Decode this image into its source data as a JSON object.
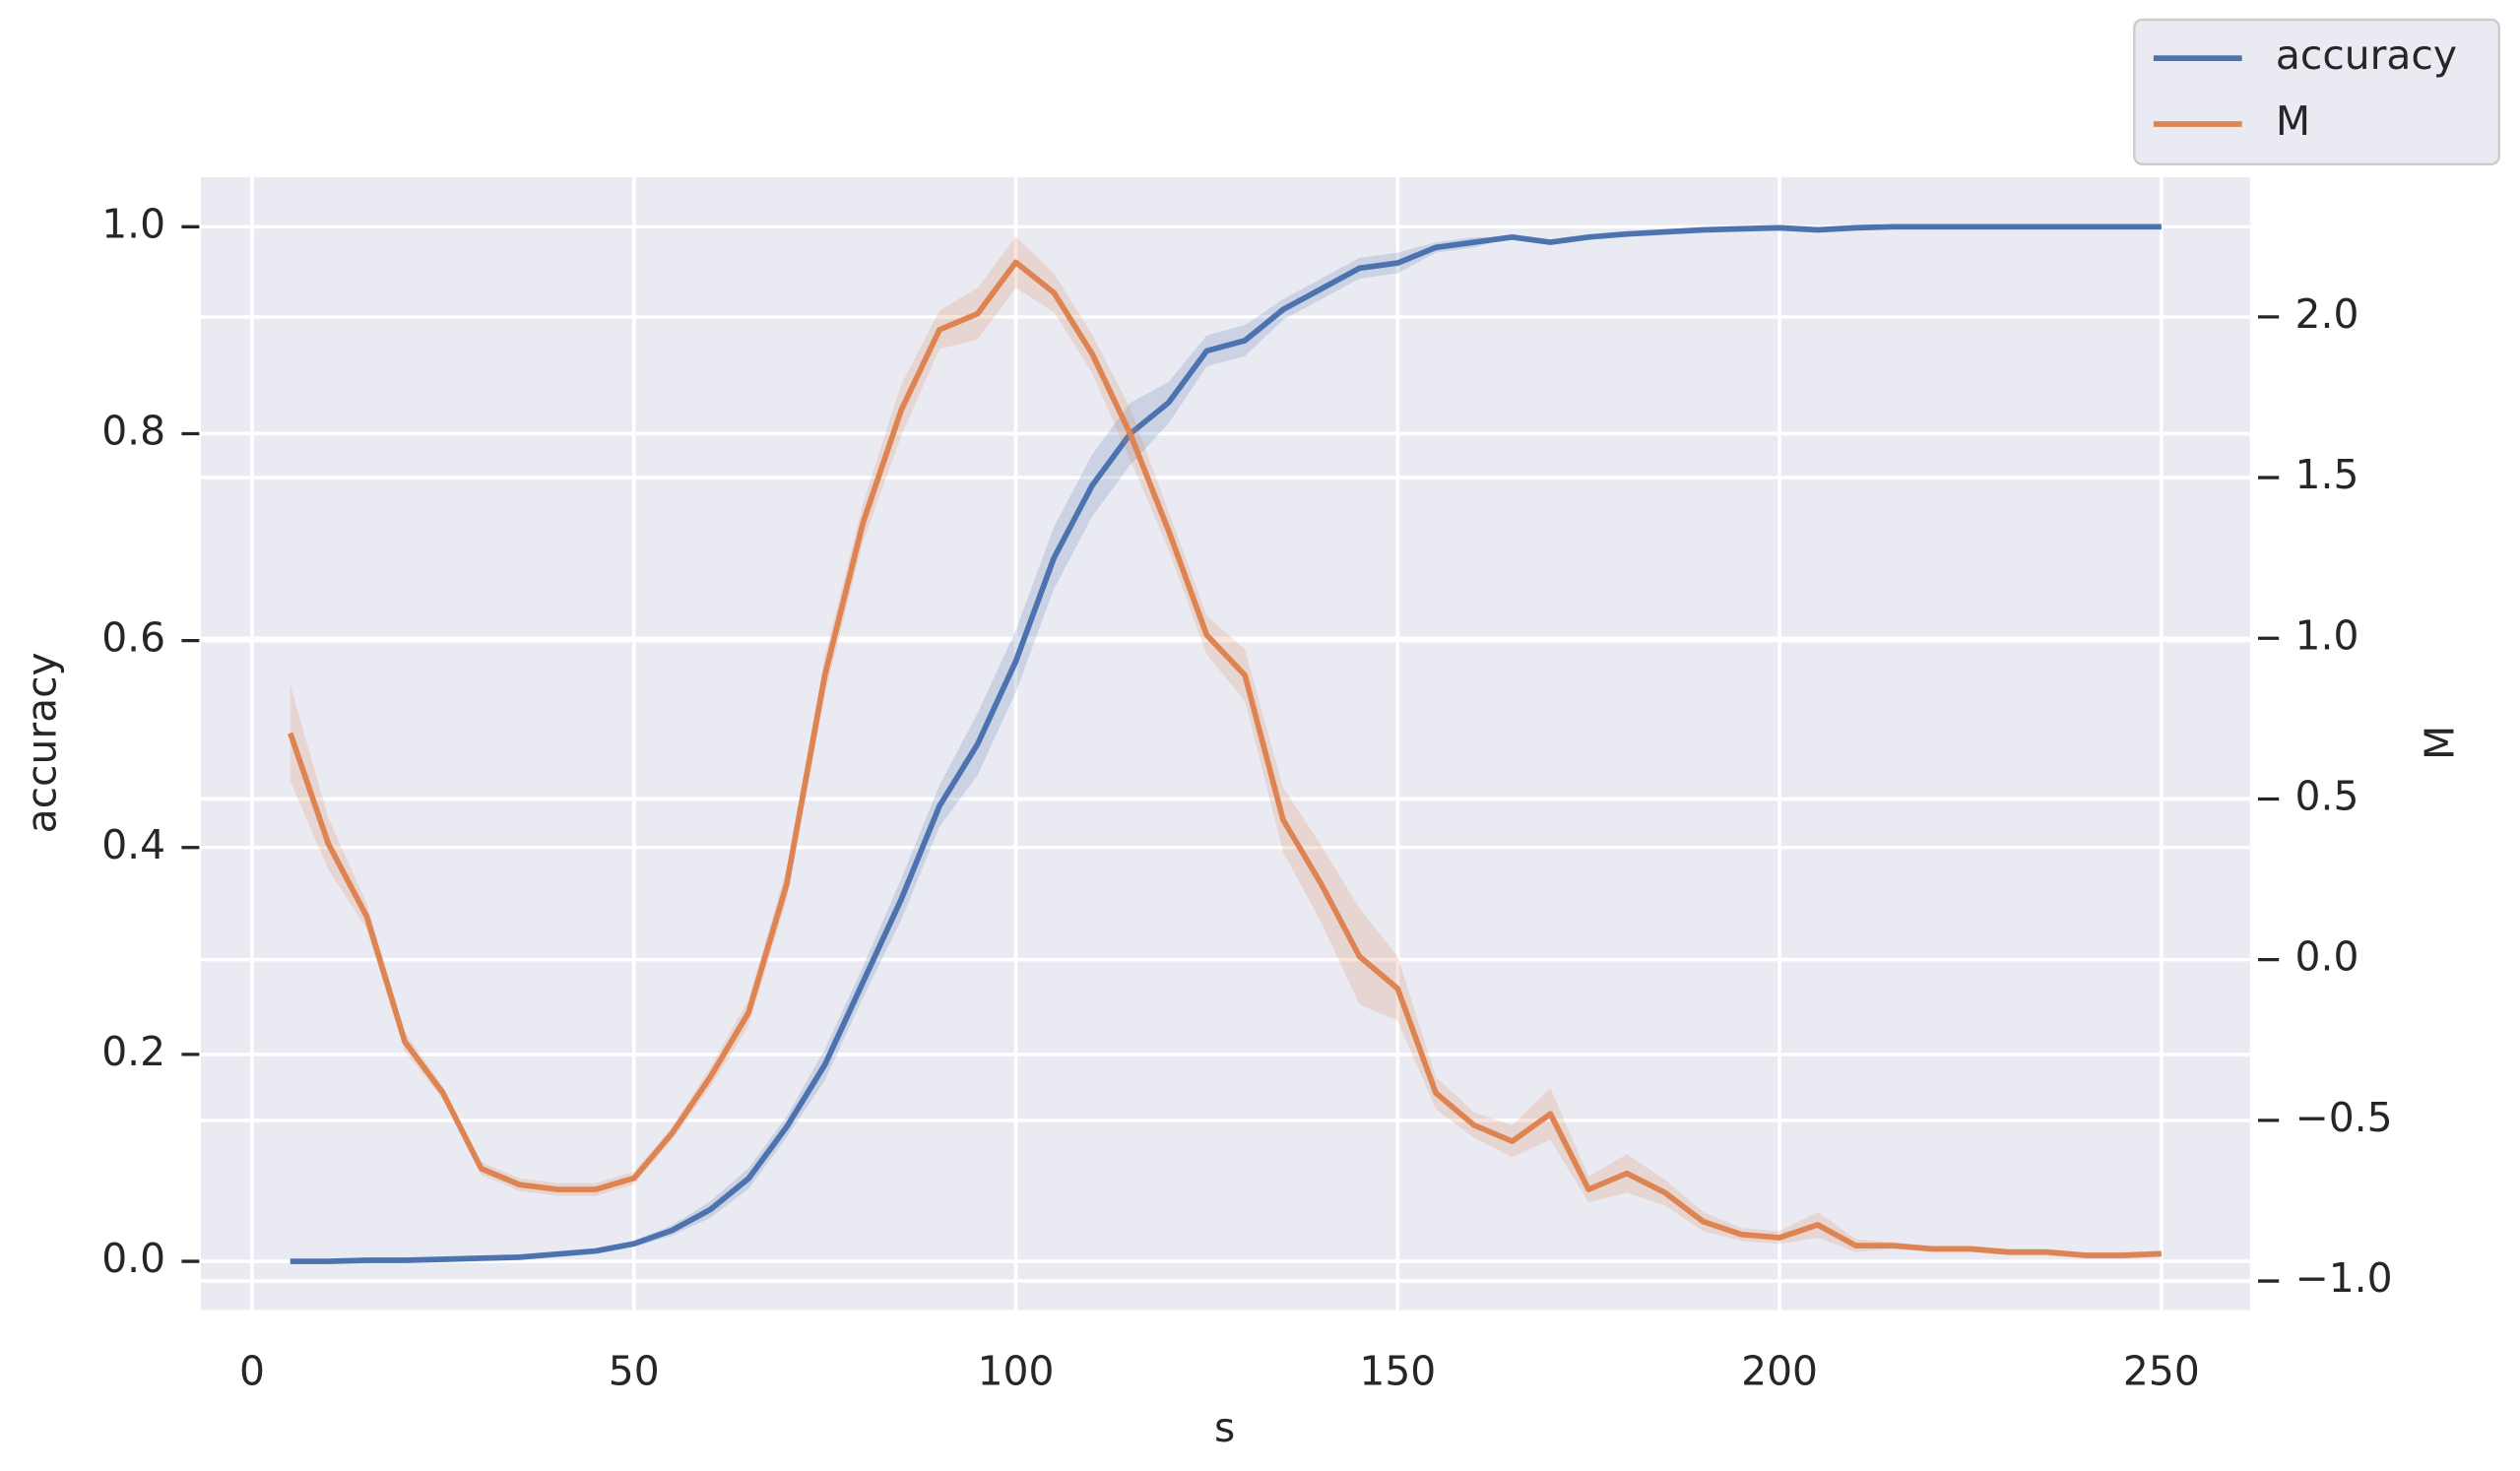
{
  "chart_data": {
    "type": "line",
    "x_label": "s",
    "y_label": "accuracy",
    "y2_label": "M",
    "x": [
      5,
      10,
      15,
      20,
      25,
      30,
      35,
      40,
      45,
      50,
      55,
      60,
      65,
      70,
      75,
      80,
      85,
      90,
      95,
      100,
      105,
      110,
      115,
      120,
      125,
      130,
      135,
      140,
      145,
      150,
      155,
      160,
      165,
      170,
      175,
      180,
      185,
      190,
      195,
      200,
      205,
      210,
      215,
      220,
      225,
      230,
      235,
      240,
      245,
      250
    ],
    "series": [
      {
        "name": "accuracy",
        "color": "#4c72b0",
        "values": [
          0,
          0,
          0.001,
          0.001,
          0.002,
          0.003,
          0.004,
          0.007,
          0.01,
          0.017,
          0.03,
          0.05,
          0.08,
          0.13,
          0.19,
          0.27,
          0.35,
          0.44,
          0.5,
          0.58,
          0.68,
          0.75,
          0.8,
          0.83,
          0.88,
          0.89,
          0.92,
          0.94,
          0.96,
          0.965,
          0.98,
          0.985,
          0.99,
          0.985,
          0.99,
          0.993,
          0.995,
          0.997,
          0.998,
          0.999,
          0.997,
          0.999,
          1,
          1,
          1,
          1,
          1,
          1,
          1,
          1
        ],
        "ci": [
          0,
          0,
          0,
          0,
          0,
          0,
          0,
          0,
          0,
          0.003,
          0.005,
          0.008,
          0.01,
          0.01,
          0.015,
          0.015,
          0.02,
          0.02,
          0.03,
          0.03,
          0.03,
          0.03,
          0.03,
          0.02,
          0.015,
          0.015,
          0.01,
          0.01,
          0.01,
          0.01,
          0.005,
          0.005,
          0,
          0,
          0,
          0,
          0,
          0,
          0,
          0,
          0,
          0,
          0,
          0,
          0,
          0,
          0,
          0,
          0,
          0
        ]
      },
      {
        "name": "M",
        "color": "#dd8452",
        "axis": "y2",
        "values": [
          0.705,
          0.36,
          0.135,
          -0.255,
          -0.415,
          -0.65,
          -0.7,
          -0.715,
          -0.715,
          -0.68,
          -0.54,
          -0.365,
          -0.165,
          0.235,
          0.885,
          1.36,
          1.71,
          1.96,
          2.01,
          2.17,
          2.075,
          1.885,
          1.635,
          1.335,
          1.01,
          0.885,
          0.435,
          0.235,
          0.01,
          -0.09,
          -0.415,
          -0.515,
          -0.565,
          -0.48,
          -0.715,
          -0.665,
          -0.725,
          -0.815,
          -0.855,
          -0.865,
          -0.825,
          -0.89,
          -0.89,
          -0.9,
          -0.9,
          -0.91,
          -0.91,
          -0.92,
          -0.92,
          -0.915
        ],
        "ci": [
          0.15,
          0.08,
          0.04,
          0.03,
          0.02,
          0.02,
          0.02,
          0.02,
          0.02,
          0.02,
          0.02,
          0.03,
          0.04,
          0.05,
          0.06,
          0.06,
          0.08,
          0.06,
          0.08,
          0.08,
          0.06,
          0.06,
          0.08,
          0.06,
          0.06,
          0.08,
          0.1,
          0.12,
          0.15,
          0.1,
          0.05,
          0.04,
          0.05,
          0.08,
          0.04,
          0.06,
          0.04,
          0.03,
          0.02,
          0.02,
          0.04,
          0.02,
          0.01,
          0.01,
          0.01,
          0.01,
          0.01,
          0.01,
          0.01,
          0.01
        ]
      }
    ],
    "xlim": [
      -6.7,
      261.6
    ],
    "xticks": [
      0,
      50,
      100,
      150,
      200,
      250
    ],
    "ylim": [
      -0.047,
      1.048
    ],
    "yticks": [
      {
        "value": 0,
        "label": "0.0"
      },
      {
        "value": 0.2,
        "label": "0.2"
      },
      {
        "value": 0.4,
        "label": "0.4"
      },
      {
        "value": 0.6,
        "label": "0.6"
      },
      {
        "value": 0.8,
        "label": "0.8"
      },
      {
        "value": 1,
        "label": "1.0"
      }
    ],
    "y2lim": [
      -1.09,
      2.435
    ],
    "y2ticks": [
      {
        "value": -1,
        "label": "−1.0"
      },
      {
        "value": -0.5,
        "label": "−0.5"
      },
      {
        "value": 0,
        "label": "0.0"
      },
      {
        "value": 0.5,
        "label": "0.5"
      },
      {
        "value": 1,
        "label": "1.0"
      },
      {
        "value": 1.5,
        "label": "1.5"
      },
      {
        "value": 2,
        "label": "2.0"
      }
    ],
    "grid": true,
    "legend": "upper right"
  }
}
